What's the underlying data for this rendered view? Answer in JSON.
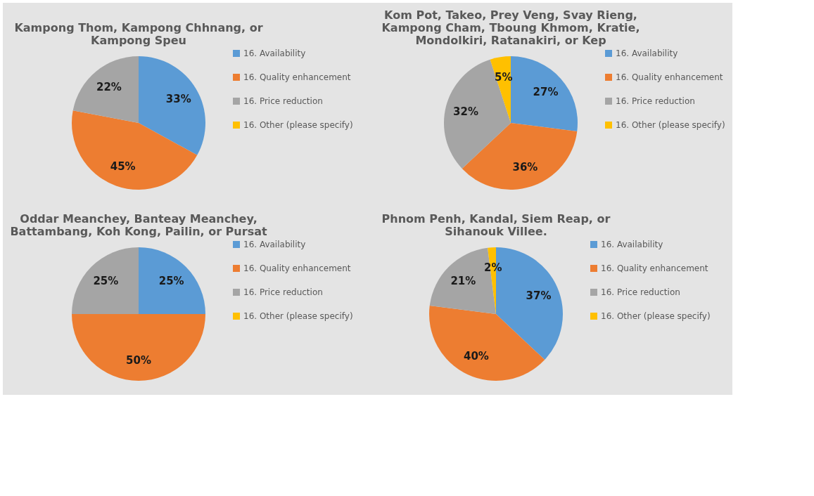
{
  "chart_data": [
    {
      "type": "pie",
      "title": "Kampong Thom, Kampong Chhnang, or Kampong Speu",
      "categories": [
        "16. Availability",
        "16. Quality enhancement",
        "16. Price reduction",
        "16. Other (please specify)"
      ],
      "values": [
        33,
        45,
        22,
        0
      ],
      "colors": [
        "#5b9bd5",
        "#ed7d31",
        "#a5a5a5",
        "#ffc000"
      ],
      "value_labels": [
        "33%",
        "45%",
        "22%",
        null
      ],
      "legend": "right"
    },
    {
      "type": "pie",
      "title": "Kom Pot, Takeo, Prey Veng, Svay Rieng, Kampong Cham, Tboung Khmom, Kratie, Mondolkiri, Ratanakiri, or Kep",
      "categories": [
        "16. Availability",
        "16. Quality enhancement",
        "16. Price reduction",
        "16. Other (please specify)"
      ],
      "values": [
        27,
        36,
        32,
        5
      ],
      "colors": [
        "#5b9bd5",
        "#ed7d31",
        "#a5a5a5",
        "#ffc000"
      ],
      "value_labels": [
        "27%",
        "36%",
        "32%",
        "5%"
      ],
      "legend": "right"
    },
    {
      "type": "pie",
      "title": "Oddar Meanchey, Banteay Meanchey, Battambang, Koh Kong, Pailin, or Pursat",
      "categories": [
        "16. Availability",
        "16. Quality enhancement",
        "16. Price reduction",
        "16. Other (please specify)"
      ],
      "values": [
        25,
        50,
        25,
        0
      ],
      "colors": [
        "#5b9bd5",
        "#ed7d31",
        "#a5a5a5",
        "#ffc000"
      ],
      "value_labels": [
        "25%",
        "50%",
        "25%",
        null
      ],
      "legend": "right"
    },
    {
      "type": "pie",
      "title": "Phnom Penh, Kandal, Siem Reap, or Sihanouk Villee.",
      "categories": [
        "16. Availability",
        "16. Quality enhancement",
        "16. Price reduction",
        "16. Other (please specify)"
      ],
      "values": [
        37,
        40,
        21,
        2
      ],
      "colors": [
        "#5b9bd5",
        "#ed7d31",
        "#a5a5a5",
        "#ffc000"
      ],
      "value_labels": [
        "37%",
        "40%",
        "21%",
        "2%"
      ],
      "legend": "right"
    }
  ]
}
